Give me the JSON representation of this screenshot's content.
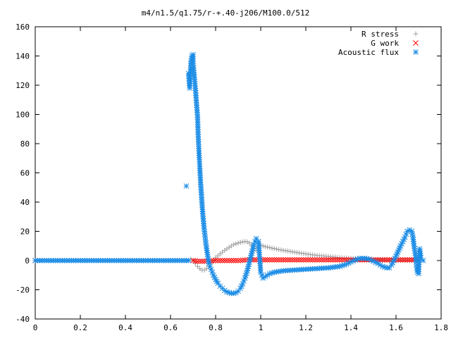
{
  "chart_data": {
    "type": "scatter",
    "title": "m4/n1.5/q1.75/r-+.40-j206/M100.0/512",
    "xlabel": "",
    "ylabel": "",
    "xlim": [
      0,
      1.8
    ],
    "ylim": [
      -40,
      160
    ],
    "xticks": [
      "0",
      "0.2",
      "0.4",
      "0.6",
      "0.8",
      "1",
      "1.2",
      "1.4",
      "1.6",
      "1.8"
    ],
    "yticks": [
      "-40",
      "-20",
      "0",
      "20",
      "40",
      "60",
      "80",
      "100",
      "120",
      "140",
      "160"
    ],
    "grid": false,
    "legend_position": "top-right",
    "series": [
      {
        "name": "R stress",
        "marker": "plus",
        "color": "#a0a0a0",
        "points": [
          [
            0.69,
            1
          ],
          [
            0.7,
            0
          ],
          [
            0.71,
            -2
          ],
          [
            0.72,
            -4
          ],
          [
            0.73,
            -5.5
          ],
          [
            0.74,
            -6.5
          ],
          [
            0.75,
            -6.5
          ],
          [
            0.76,
            -5.5
          ],
          [
            0.77,
            -4
          ],
          [
            0.78,
            -2
          ],
          [
            0.79,
            0
          ],
          [
            0.8,
            2
          ],
          [
            0.82,
            4.5
          ],
          [
            0.84,
            7
          ],
          [
            0.86,
            9
          ],
          [
            0.88,
            11
          ],
          [
            0.9,
            12
          ],
          [
            0.92,
            12.8
          ],
          [
            0.93,
            13
          ],
          [
            0.94,
            12.8
          ],
          [
            0.95,
            12
          ],
          [
            0.96,
            10.5
          ],
          [
            0.97,
            8.5
          ],
          [
            0.98,
            7
          ],
          [
            0.99,
            9
          ],
          [
            1.0,
            10.5
          ],
          [
            1.02,
            9.5
          ],
          [
            1.05,
            8.5
          ],
          [
            1.08,
            7.5
          ],
          [
            1.12,
            6.5
          ],
          [
            1.16,
            5.5
          ],
          [
            1.2,
            4.5
          ],
          [
            1.25,
            3.5
          ],
          [
            1.3,
            2.8
          ],
          [
            1.35,
            2
          ],
          [
            1.4,
            1.5
          ],
          [
            1.45,
            1
          ],
          [
            1.5,
            0.6
          ],
          [
            1.55,
            0.3
          ],
          [
            1.6,
            0.2
          ],
          [
            1.65,
            0.1
          ],
          [
            1.7,
            0
          ]
        ]
      },
      {
        "name": "G work",
        "marker": "cross",
        "color": "#ff0000",
        "points": [
          [
            0,
            0
          ],
          [
            0.7,
            0
          ],
          [
            0.72,
            -0.5
          ],
          [
            0.75,
            -0.5
          ],
          [
            0.8,
            0
          ],
          [
            0.85,
            0
          ],
          [
            0.9,
            0
          ],
          [
            0.95,
            0.5
          ],
          [
            1.0,
            0.5
          ],
          [
            1.05,
            0.5
          ],
          [
            1.1,
            0.5
          ],
          [
            1.15,
            0.5
          ],
          [
            1.2,
            0.5
          ],
          [
            1.25,
            0.5
          ],
          [
            1.3,
            0.5
          ],
          [
            1.35,
            0.5
          ],
          [
            1.4,
            0.5
          ],
          [
            1.45,
            0.5
          ],
          [
            1.5,
            0.5
          ],
          [
            1.55,
            0.5
          ],
          [
            1.6,
            0.5
          ],
          [
            1.65,
            0.5
          ],
          [
            1.7,
            0.5
          ]
        ]
      },
      {
        "name": "Acoustic flux",
        "marker": "star",
        "color": "#1a8ce6",
        "points": [
          [
            0,
            0
          ],
          [
            0.05,
            0
          ],
          [
            0.1,
            0
          ],
          [
            0.15,
            0
          ],
          [
            0.2,
            0
          ],
          [
            0.25,
            0
          ],
          [
            0.3,
            0
          ],
          [
            0.35,
            0
          ],
          [
            0.4,
            0
          ],
          [
            0.45,
            0
          ],
          [
            0.5,
            0
          ],
          [
            0.55,
            0
          ],
          [
            0.6,
            0
          ],
          [
            0.65,
            0
          ],
          [
            0.68,
            0
          ],
          [
            0.67,
            51
          ],
          [
            0.68,
            128
          ],
          [
            0.685,
            118
          ],
          [
            0.69,
            135
          ],
          [
            0.695,
            140
          ],
          [
            0.7,
            141
          ],
          [
            0.7,
            135
          ],
          [
            0.705,
            127
          ],
          [
            0.71,
            118
          ],
          [
            0.715,
            108
          ],
          [
            0.72,
            98
          ],
          [
            0.722,
            88
          ],
          [
            0.725,
            78
          ],
          [
            0.728,
            69
          ],
          [
            0.731,
            60
          ],
          [
            0.734,
            52
          ],
          [
            0.737,
            45
          ],
          [
            0.74,
            38
          ],
          [
            0.743,
            32
          ],
          [
            0.746,
            27
          ],
          [
            0.749,
            22
          ],
          [
            0.752,
            18
          ],
          [
            0.755,
            14
          ],
          [
            0.758,
            10
          ],
          [
            0.761,
            7
          ],
          [
            0.764,
            4
          ],
          [
            0.767,
            1
          ],
          [
            0.77,
            -2
          ],
          [
            0.78,
            -6
          ],
          [
            0.79,
            -10
          ],
          [
            0.8,
            -13
          ],
          [
            0.81,
            -15.5
          ],
          [
            0.82,
            -17.5
          ],
          [
            0.83,
            -19
          ],
          [
            0.84,
            -20.5
          ],
          [
            0.85,
            -21.5
          ],
          [
            0.86,
            -22
          ],
          [
            0.87,
            -22.5
          ],
          [
            0.88,
            -22.5
          ],
          [
            0.89,
            -22
          ],
          [
            0.9,
            -21
          ],
          [
            0.91,
            -19
          ],
          [
            0.92,
            -16
          ],
          [
            0.93,
            -12
          ],
          [
            0.94,
            -7
          ],
          [
            0.95,
            -1
          ],
          [
            0.96,
            5
          ],
          [
            0.97,
            11
          ],
          [
            0.98,
            15
          ],
          [
            0.99,
            13
          ],
          [
            1.0,
            -8
          ],
          [
            1.01,
            -12
          ],
          [
            1.02,
            -11
          ],
          [
            1.04,
            -9
          ],
          [
            1.06,
            -8
          ],
          [
            1.08,
            -7.5
          ],
          [
            1.1,
            -7
          ],
          [
            1.15,
            -6.5
          ],
          [
            1.2,
            -6
          ],
          [
            1.25,
            -5.5
          ],
          [
            1.3,
            -5
          ],
          [
            1.35,
            -4
          ],
          [
            1.38,
            -2.5
          ],
          [
            1.4,
            -1
          ],
          [
            1.42,
            0.5
          ],
          [
            1.44,
            1.5
          ],
          [
            1.46,
            1.5
          ],
          [
            1.48,
            1
          ],
          [
            1.5,
            -0.5
          ],
          [
            1.52,
            -2
          ],
          [
            1.54,
            -4
          ],
          [
            1.56,
            -5
          ],
          [
            1.57,
            -5
          ],
          [
            1.58,
            -3
          ],
          [
            1.6,
            3
          ],
          [
            1.62,
            10
          ],
          [
            1.64,
            16
          ],
          [
            1.65,
            20
          ],
          [
            1.66,
            21
          ],
          [
            1.67,
            20
          ],
          [
            1.675,
            16
          ],
          [
            1.68,
            10
          ],
          [
            1.685,
            5
          ],
          [
            1.69,
            -1
          ],
          [
            1.692,
            -5
          ],
          [
            1.695,
            -8
          ],
          [
            1.7,
            -9
          ],
          [
            1.705,
            8
          ],
          [
            1.71,
            2
          ],
          [
            1.72,
            0
          ]
        ]
      }
    ]
  }
}
